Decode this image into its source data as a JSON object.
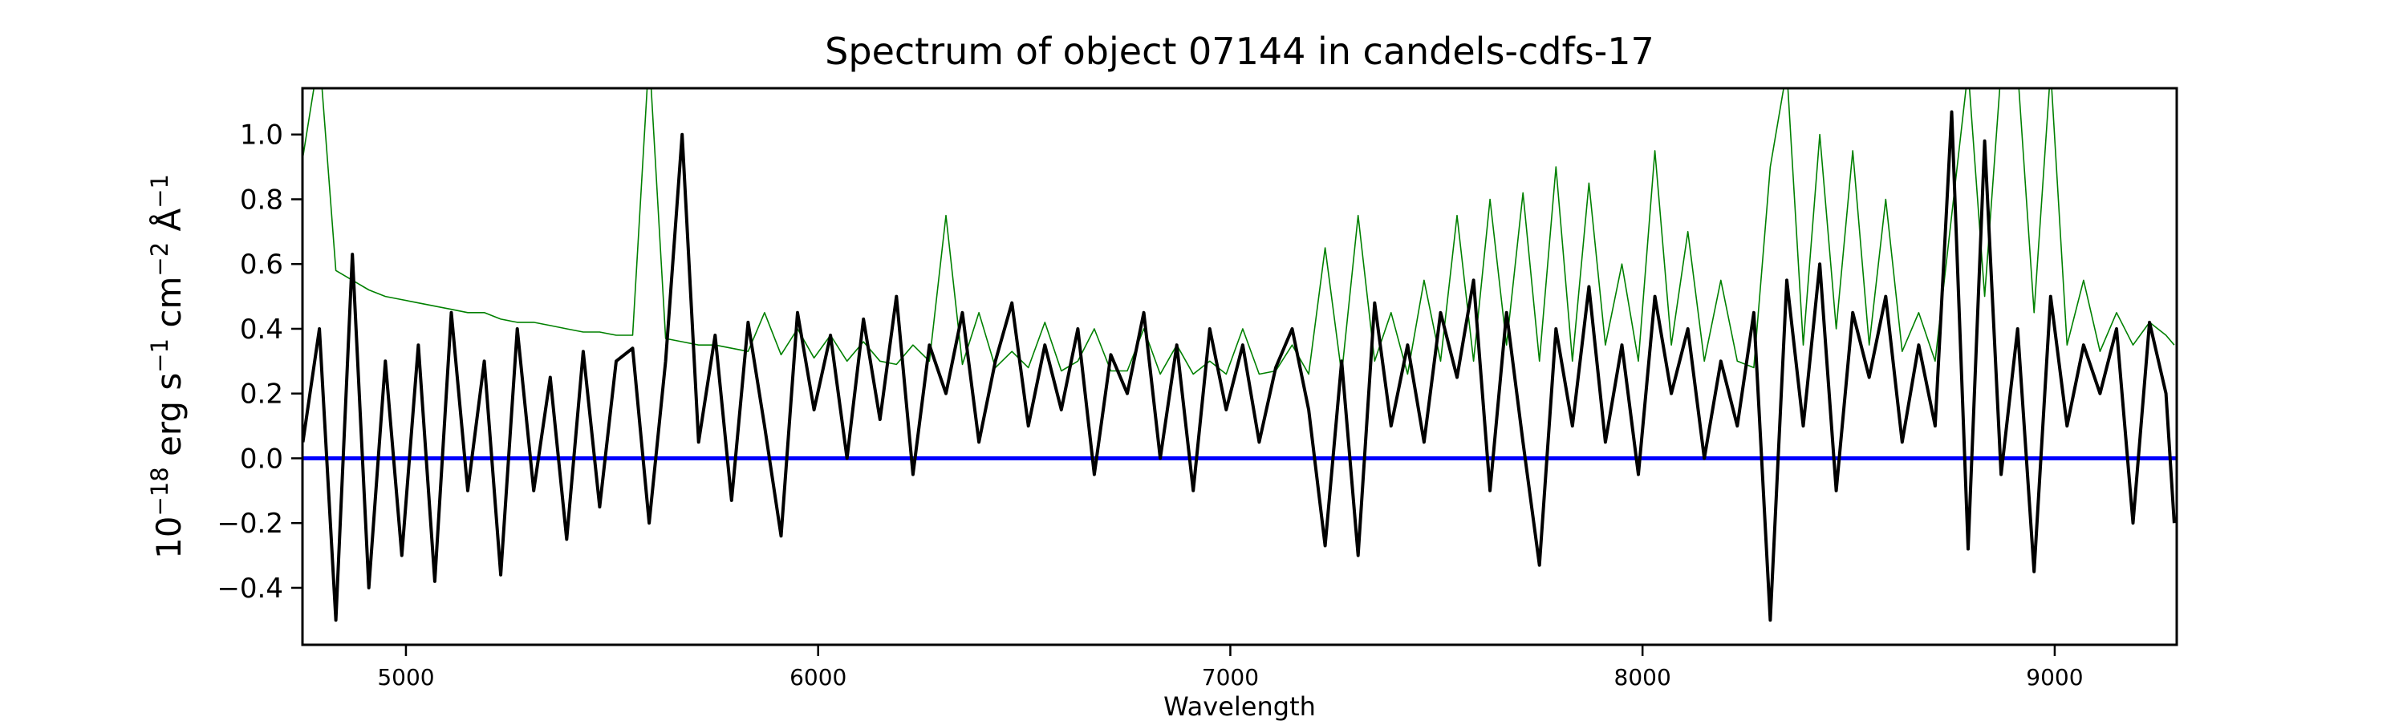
{
  "chart_data": {
    "type": "line",
    "title": "Spectrum of object 07144 in candels-cdfs-17",
    "xlabel": "Wavelength",
    "ylabel": "10^-18 erg s^-1 cm^-2 Å^-1",
    "xlim": [
      4749,
      9296
    ],
    "ylim": [
      -0.576,
      1.143
    ],
    "grid": false,
    "x_ticks": [
      5000,
      6000,
      7000,
      8000,
      9000
    ],
    "x_tick_labels": [
      "5000",
      "6000",
      "7000",
      "8000",
      "9000"
    ],
    "y_ticks": [
      -0.4,
      -0.2,
      0.0,
      0.2,
      0.4,
      0.6,
      0.8,
      1.0
    ],
    "y_tick_labels": [
      "−0.4",
      "−0.2",
      "0.0",
      "0.2",
      "0.4",
      "0.6",
      "0.8",
      "1.0"
    ],
    "x": [
      4750,
      4790,
      4830,
      4870,
      4910,
      4950,
      4990,
      5030,
      5070,
      5110,
      5150,
      5190,
      5230,
      5270,
      5310,
      5350,
      5390,
      5430,
      5470,
      5510,
      5550,
      5590,
      5630,
      5670,
      5710,
      5750,
      5790,
      5830,
      5870,
      5910,
      5950,
      5990,
      6030,
      6070,
      6110,
      6150,
      6190,
      6230,
      6270,
      6310,
      6350,
      6390,
      6430,
      6470,
      6510,
      6550,
      6590,
      6630,
      6670,
      6710,
      6750,
      6790,
      6830,
      6870,
      6910,
      6950,
      6990,
      7030,
      7070,
      7110,
      7150,
      7190,
      7230,
      7270,
      7310,
      7350,
      7390,
      7430,
      7470,
      7510,
      7550,
      7590,
      7630,
      7670,
      7710,
      7750,
      7790,
      7830,
      7870,
      7910,
      7950,
      7990,
      8030,
      8070,
      8110,
      8150,
      8190,
      8230,
      8270,
      8310,
      8350,
      8390,
      8430,
      8470,
      8510,
      8550,
      8590,
      8630,
      8670,
      8710,
      8750,
      8790,
      8830,
      8870,
      8910,
      8950,
      8990,
      9030,
      9070,
      9110,
      9150,
      9190,
      9230,
      9270,
      9290
    ],
    "series": [
      {
        "role": "flux",
        "color": "#000000",
        "values": [
          0.05,
          0.4,
          -0.5,
          0.63,
          -0.4,
          0.3,
          -0.3,
          0.35,
          -0.38,
          0.45,
          -0.1,
          0.3,
          -0.36,
          0.4,
          -0.1,
          0.25,
          -0.25,
          0.33,
          -0.15,
          0.3,
          0.34,
          -0.2,
          0.3,
          1.0,
          0.05,
          0.38,
          -0.13,
          0.42,
          0.1,
          -0.24,
          0.45,
          0.15,
          0.38,
          0.0,
          0.43,
          0.12,
          0.5,
          -0.05,
          0.35,
          0.2,
          0.45,
          0.05,
          0.3,
          0.48,
          0.1,
          0.35,
          0.15,
          0.4,
          -0.05,
          0.32,
          0.2,
          0.45,
          0.0,
          0.35,
          -0.1,
          0.4,
          0.15,
          0.35,
          0.05,
          0.28,
          0.4,
          0.15,
          -0.27,
          0.3,
          -0.3,
          0.48,
          0.1,
          0.35,
          0.05,
          0.45,
          0.25,
          0.55,
          -0.1,
          0.45,
          0.05,
          -0.33,
          0.4,
          0.1,
          0.53,
          0.05,
          0.35,
          -0.05,
          0.5,
          0.2,
          0.4,
          0.0,
          0.3,
          0.1,
          0.45,
          -0.5,
          0.55,
          0.1,
          0.6,
          -0.1,
          0.45,
          0.25,
          0.5,
          0.05,
          0.35,
          0.1,
          1.07,
          -0.28,
          0.98,
          -0.05,
          0.4,
          -0.35,
          0.5,
          0.1,
          0.35,
          0.2,
          0.4,
          -0.2,
          0.42,
          0.2,
          -0.2
        ]
      },
      {
        "role": "error",
        "color": "#008000",
        "values": [
          0.93,
          1.25,
          0.58,
          0.55,
          0.52,
          0.5,
          0.49,
          0.48,
          0.47,
          0.46,
          0.45,
          0.45,
          0.43,
          0.42,
          0.42,
          0.41,
          0.4,
          0.39,
          0.39,
          0.38,
          0.38,
          1.25,
          0.37,
          0.36,
          0.35,
          0.35,
          0.34,
          0.33,
          0.45,
          0.32,
          0.4,
          0.31,
          0.38,
          0.3,
          0.36,
          0.3,
          0.29,
          0.35,
          0.3,
          0.75,
          0.29,
          0.45,
          0.28,
          0.33,
          0.28,
          0.42,
          0.27,
          0.3,
          0.4,
          0.27,
          0.27,
          0.4,
          0.26,
          0.35,
          0.26,
          0.3,
          0.26,
          0.4,
          0.26,
          0.27,
          0.35,
          0.26,
          0.65,
          0.26,
          0.75,
          0.3,
          0.45,
          0.26,
          0.55,
          0.3,
          0.75,
          0.3,
          0.8,
          0.35,
          0.82,
          0.3,
          0.9,
          0.3,
          0.85,
          0.35,
          0.6,
          0.3,
          0.95,
          0.35,
          0.7,
          0.3,
          0.55,
          0.3,
          0.28,
          0.9,
          1.2,
          0.35,
          1.0,
          0.4,
          0.95,
          0.35,
          0.8,
          0.33,
          0.45,
          0.3,
          0.75,
          1.2,
          0.5,
          1.2,
          1.2,
          0.45,
          1.2,
          0.35,
          0.55,
          0.33,
          0.45,
          0.35,
          0.42,
          0.38,
          0.35
        ]
      },
      {
        "role": "zero-line",
        "color": "#0000ff",
        "constant": 0.0
      }
    ]
  }
}
